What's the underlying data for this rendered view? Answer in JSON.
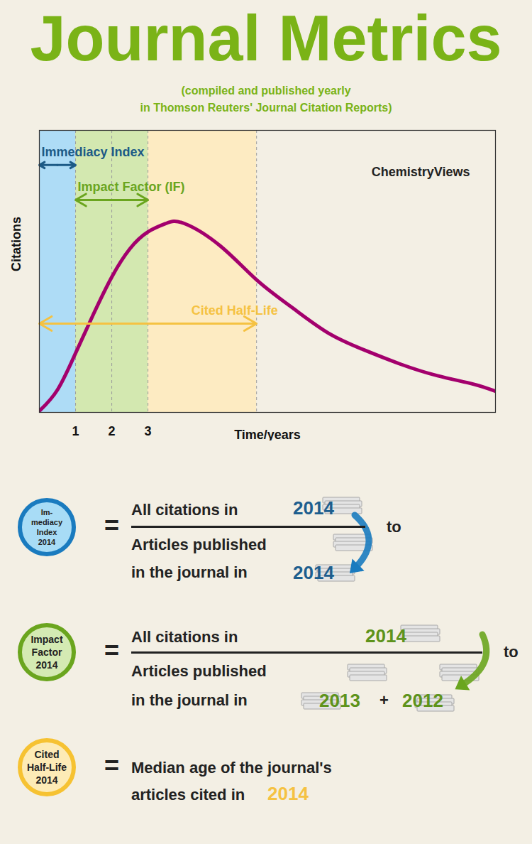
{
  "title": "Journal Metrics",
  "subtitle": [
    "(compiled and published yearly",
    "in Thomson Reuters' Journal Citation Reports)"
  ],
  "title_color": "#7ab317",
  "chart_data": {
    "type": "line",
    "x_label": "Time/years",
    "y_label": "Citations",
    "x": [
      0,
      0.5,
      1,
      1.5,
      2,
      2.5,
      3,
      3.5,
      4,
      5,
      6,
      7,
      8,
      9,
      10,
      11,
      12,
      12.6
    ],
    "values": [
      0.5,
      8,
      21,
      35,
      48,
      58,
      64,
      67,
      67,
      59,
      47,
      37,
      28,
      22,
      17,
      13,
      10,
      7.5
    ],
    "color": "#a3006d",
    "xlim": [
      0,
      12.6
    ],
    "ylim": [
      0,
      100
    ],
    "xticks": [
      1,
      2,
      3
    ],
    "yticks": [],
    "tick_labels": "x",
    "logo": "ChemistryViews",
    "guides": [
      1,
      2,
      3,
      6
    ],
    "regions": [
      {
        "from": 0,
        "to": 1,
        "color": "#aedcf6"
      },
      {
        "from": 1,
        "to": 3,
        "color": "#d3e8b0"
      },
      {
        "from": 3,
        "to": 6,
        "color": "#fdebc2"
      }
    ],
    "annotations": [
      {
        "label": "Immediacy Index",
        "from": 0,
        "to": 1,
        "color": "#1c5a86"
      },
      {
        "label": "Impact Factor (IF)",
        "from": 1,
        "to": 3,
        "color": "#6aa51e"
      },
      {
        "label": "Cited Half-Life",
        "from": 0,
        "to": 6,
        "color": "#f5c242"
      }
    ]
  },
  "equals": "=",
  "formulas": [
    {
      "badge": [
        "Im-",
        "mediacy",
        "Index",
        "2014"
      ],
      "color": "#1a7bbf",
      "fill": "#a8dcf6",
      "year_color": "#1d5e8e",
      "numerator": "All citations in",
      "numerator_years": [
        "2014"
      ],
      "connector": "to",
      "denominator": [
        "Articles published",
        "in the journal in"
      ],
      "denominator_years": [
        "2014"
      ]
    },
    {
      "badge": [
        "Impact",
        "Factor",
        "2014"
      ],
      "color": "#6aa51e",
      "fill": "#d4eab3",
      "year_color": "#5e931b",
      "numerator": "All citations in",
      "numerator_years": [
        "2014"
      ],
      "connector": "to",
      "denominator": [
        "Articles published",
        "in the journal in"
      ],
      "denominator_years": [
        "2013",
        "2012"
      ],
      "year_joiner": "+"
    },
    {
      "badge": [
        "Cited",
        "Half-Life",
        "2014"
      ],
      "color": "#f6c232",
      "fill": "#fdebb6",
      "year_color": "#f5c242",
      "text": [
        "Median age of the journal's",
        "articles cited in"
      ],
      "text_years": [
        "2014"
      ]
    }
  ]
}
